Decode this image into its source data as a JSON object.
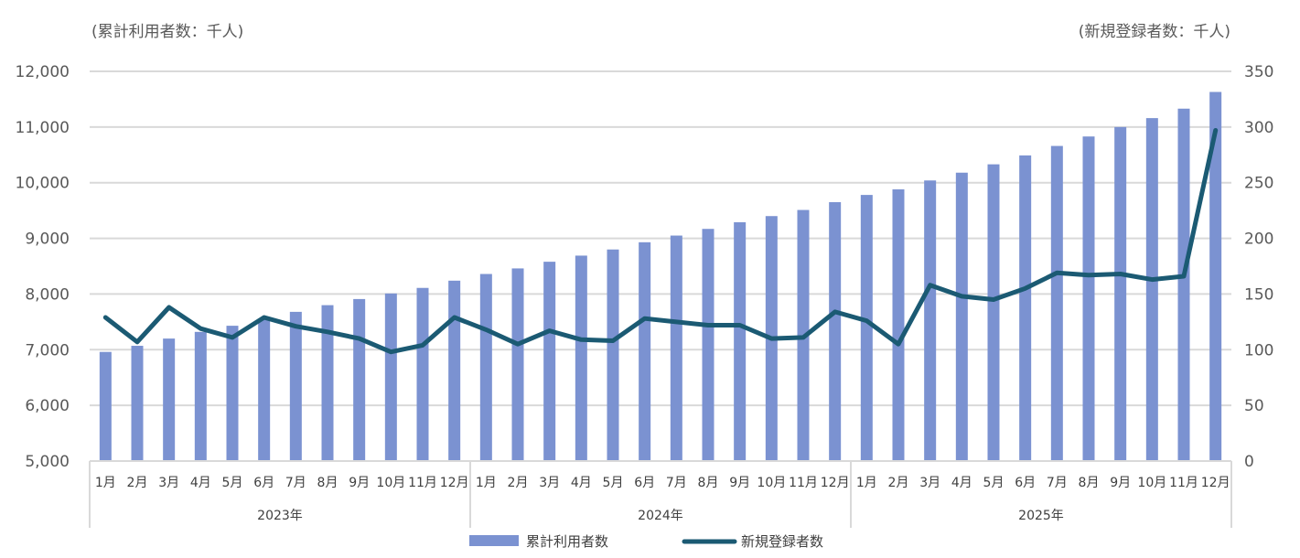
{
  "chart_data": {
    "type": "bar+line",
    "y_left_title": "(累計利用者数：千人)",
    "y_right_title": "(新規登録者数：千人)",
    "y_left_range": [
      5000,
      12000
    ],
    "y_left_ticks": [
      "5,000",
      "6,000",
      "7,000",
      "8,000",
      "9,000",
      "10,000",
      "11,000",
      "12,000"
    ],
    "y_right_range": [
      0,
      350
    ],
    "y_right_ticks": [
      "0",
      "50",
      "100",
      "150",
      "200",
      "250",
      "300",
      "350"
    ],
    "years": [
      {
        "label": "2023年",
        "months": [
          "1月",
          "2月",
          "3月",
          "4月",
          "5月",
          "6月",
          "7月",
          "8月",
          "9月",
          "10月",
          "11月",
          "12月"
        ]
      },
      {
        "label": "2024年",
        "months": [
          "1月",
          "2月",
          "3月",
          "4月",
          "5月",
          "6月",
          "7月",
          "8月",
          "9月",
          "10月",
          "11月",
          "12月"
        ]
      },
      {
        "label": "2025年",
        "months": [
          "1月",
          "2月",
          "3月",
          "4月",
          "5月",
          "6月",
          "7月",
          "8月",
          "9月",
          "10月",
          "11月",
          "12月"
        ]
      }
    ],
    "grid": "horizontal",
    "legend_position": "bottom",
    "series": [
      {
        "name": "累計利用者数",
        "type": "bar",
        "axis": "left",
        "color": "#7b92d1",
        "values": [
          6960,
          7070,
          7200,
          7320,
          7430,
          7560,
          7680,
          7800,
          7910,
          8010,
          8110,
          8240,
          8360,
          8460,
          8580,
          8690,
          8800,
          8930,
          9050,
          9170,
          9290,
          9400,
          9510,
          9650,
          9780,
          9880,
          10040,
          10180,
          10330,
          10490,
          10660,
          10830,
          11000,
          11160,
          11330,
          11630
        ]
      },
      {
        "name": "新規登録者数",
        "type": "line",
        "axis": "right",
        "color": "#1b5a73",
        "values": [
          129,
          107,
          138,
          119,
          111,
          129,
          121,
          116,
          110,
          98,
          104,
          129,
          118,
          105,
          117,
          109,
          108,
          128,
          125,
          122,
          122,
          110,
          111,
          134,
          126,
          105,
          158,
          148,
          145,
          155,
          169,
          167,
          168,
          163,
          166,
          297
        ]
      }
    ]
  }
}
